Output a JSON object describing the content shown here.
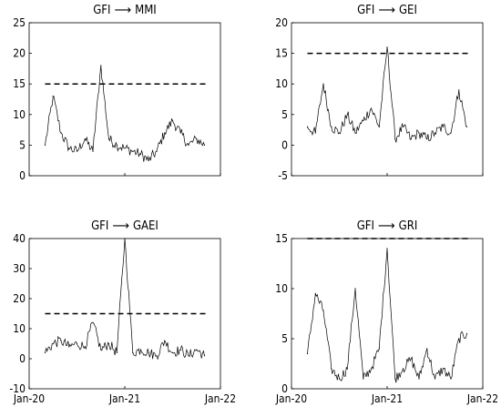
{
  "chart_data": [
    {
      "type": "line",
      "title": "GFI → MMI",
      "title_from": "GFI",
      "title_to": "MMI",
      "ylim": [
        0,
        25
      ],
      "yticks": [
        "0",
        "5",
        "10",
        "15",
        "20",
        "25"
      ],
      "threshold": 15,
      "threshold_style": "dashed",
      "x": [
        "2020-03",
        "2020-04",
        "2020-05",
        "2020-06",
        "2020-07",
        "2020-08",
        "2020-09",
        "2020-10",
        "2020-11",
        "2020-12",
        "2021-01",
        "2021-02",
        "2021-03",
        "2021-04",
        "2021-05",
        "2021-06",
        "2021-07",
        "2021-08",
        "2021-09",
        "2021-10",
        "2021-11"
      ],
      "series": [
        {
          "values": [
            5,
            13,
            7,
            4.5,
            4,
            6,
            4,
            18,
            6,
            5,
            4.5,
            4,
            3.5,
            2.5,
            4,
            7,
            9,
            7,
            5,
            6,
            5
          ]
        }
      ],
      "grid": false
    },
    {
      "type": "line",
      "title": "GFI → GEI",
      "title_from": "GFI",
      "title_to": "GEI",
      "ylim": [
        -5,
        20
      ],
      "yticks": [
        "-5",
        "0",
        "5",
        "10",
        "15",
        "20"
      ],
      "threshold": 15,
      "threshold_style": "dashed",
      "x": [
        "2020-03",
        "2020-04",
        "2020-05",
        "2020-06",
        "2020-07",
        "2020-08",
        "2020-09",
        "2020-10",
        "2020-11",
        "2020-12",
        "2021-01",
        "2021-02",
        "2021-03",
        "2021-04",
        "2021-05",
        "2021-06",
        "2021-07",
        "2021-08",
        "2021-09",
        "2021-10",
        "2021-11"
      ],
      "series": [
        {
          "values": [
            3,
            2,
            10,
            3,
            2,
            5,
            2,
            4,
            6,
            3,
            16,
            1,
            3,
            1,
            2,
            1,
            2,
            3,
            2,
            9,
            3
          ]
        }
      ],
      "grid": false
    },
    {
      "type": "line",
      "title": "GFI → GAEI",
      "title_from": "GFI",
      "title_to": "GAEI",
      "ylim": [
        -10,
        40
      ],
      "yticks": [
        "-10",
        "0",
        "10",
        "20",
        "30",
        "40"
      ],
      "threshold": 15,
      "threshold_style": "dashed",
      "x": [
        "2020-03",
        "2020-04",
        "2020-05",
        "2020-06",
        "2020-07",
        "2020-08",
        "2020-09",
        "2020-10",
        "2020-11",
        "2020-12",
        "2021-01",
        "2021-02",
        "2021-03",
        "2021-04",
        "2021-05",
        "2021-06",
        "2021-07",
        "2021-08",
        "2021-09",
        "2021-10",
        "2021-11"
      ],
      "series": [
        {
          "values": [
            2,
            5,
            6,
            4,
            5,
            4,
            12,
            3,
            5,
            2,
            40,
            2,
            3,
            2,
            1,
            6,
            2,
            3,
            1,
            3,
            1
          ]
        }
      ],
      "grid": false
    },
    {
      "type": "line",
      "title": "GFI → GRI",
      "title_from": "GFI",
      "title_to": "GRI",
      "ylim": [
        0,
        15
      ],
      "yticks": [
        "0",
        "5",
        "10",
        "15"
      ],
      "threshold": 15,
      "threshold_style": "dashed",
      "x": [
        "2020-03",
        "2020-04",
        "2020-05",
        "2020-06",
        "2020-07",
        "2020-08",
        "2020-09",
        "2020-10",
        "2020-11",
        "2020-12",
        "2021-01",
        "2021-02",
        "2021-03",
        "2021-04",
        "2021-05",
        "2021-06",
        "2021-07",
        "2021-08",
        "2021-09",
        "2021-10",
        "2021-11"
      ],
      "series": [
        {
          "values": [
            3.5,
            9.5,
            7.8,
            2,
            1,
            2,
            10,
            1,
            2,
            4,
            14,
            1,
            2,
            3,
            1,
            4,
            1,
            2,
            1,
            5,
            5.5
          ]
        }
      ],
      "grid": false
    }
  ],
  "shared_x_axis": {
    "range": [
      "2020-01",
      "2022-01"
    ],
    "ticks": [
      "Jan-20",
      "Jan-21",
      "Jan-22"
    ]
  }
}
